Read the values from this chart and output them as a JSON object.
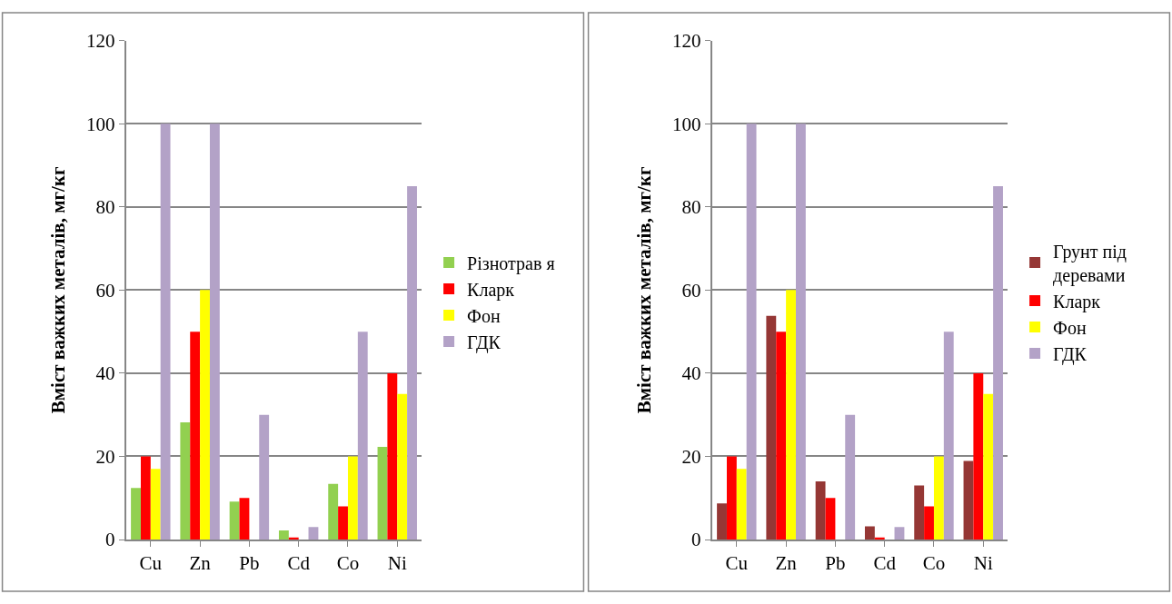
{
  "chart_data": [
    {
      "type": "bar",
      "ylabel": "Вміст важких металів, мг/кг",
      "categories": [
        "Cu",
        "Zn",
        "Pb",
        "Cd",
        "Co",
        "Ni"
      ],
      "ylim": [
        0,
        120
      ],
      "yticks": [
        0,
        20,
        40,
        60,
        80,
        100,
        120
      ],
      "grid": "y",
      "legend": "right",
      "series": [
        {
          "name": "Різнотрав я",
          "color": "#92d050",
          "values": [
            12.4,
            28.2,
            9.1,
            2.2,
            13.4,
            22.3
          ]
        },
        {
          "name": "Кларк",
          "color": "#ff0000",
          "values": [
            20,
            50,
            10,
            0.5,
            8,
            40
          ]
        },
        {
          "name": "Фон",
          "color": "#ffff00",
          "values": [
            17,
            60,
            null,
            null,
            20,
            35
          ]
        },
        {
          "name": "ГДК",
          "color": "#b3a2c7",
          "values": [
            100,
            100,
            30,
            3,
            50,
            85
          ]
        }
      ]
    },
    {
      "type": "bar",
      "ylabel": "Вміст важких металів, мг/кг",
      "categories": [
        "Cu",
        "Zn",
        "Pb",
        "Cd",
        "Co",
        "Ni"
      ],
      "ylim": [
        0,
        120
      ],
      "yticks": [
        0,
        20,
        40,
        60,
        80,
        100,
        120
      ],
      "grid": "y",
      "legend": "right",
      "series": [
        {
          "name": "Грунт під деревами",
          "color": "#953735",
          "values": [
            8.7,
            53.8,
            14,
            3.2,
            13,
            18.9
          ]
        },
        {
          "name": "Кларк",
          "color": "#ff0000",
          "values": [
            20,
            50,
            10,
            0.5,
            8,
            40
          ]
        },
        {
          "name": "Фон",
          "color": "#ffff00",
          "values": [
            17,
            60,
            null,
            null,
            20,
            35
          ]
        },
        {
          "name": "ГДК",
          "color": "#b3a2c7",
          "values": [
            100,
            100,
            30,
            3,
            50,
            85
          ]
        }
      ]
    }
  ]
}
